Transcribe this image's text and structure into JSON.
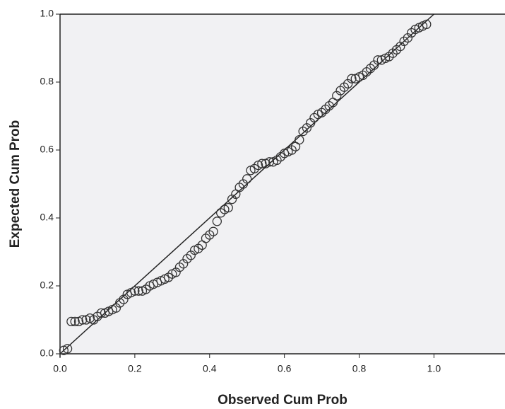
{
  "chart_data": {
    "type": "scatter",
    "x_label": "Observed Cum Prob",
    "y_label": "Expected Cum Prob",
    "xlim": [
      0,
      1.19
    ],
    "ylim": [
      0,
      1
    ],
    "xticks": [
      {
        "value": 0,
        "label": "0.0"
      },
      0.2,
      0.4,
      0.6,
      0.8,
      {
        "value": 1,
        "label": "1.0"
      }
    ],
    "yticks": [
      {
        "value": 0,
        "label": "0.0"
      },
      0.2,
      0.4,
      0.6,
      0.8,
      {
        "value": 1,
        "label": "1.0"
      }
    ],
    "color": "#333333",
    "reference_line": {
      "x": [
        0,
        1
      ],
      "y": [
        0,
        1
      ],
      "color": "#222222"
    },
    "x": [
      0.01,
      0.02,
      0.03,
      0.04,
      0.05,
      0.06,
      0.07,
      0.08,
      0.09,
      0.1,
      0.11,
      0.12,
      0.13,
      0.14,
      0.15,
      0.16,
      0.17,
      0.18,
      0.19,
      0.2,
      0.21,
      0.22,
      0.23,
      0.24,
      0.25,
      0.26,
      0.27,
      0.28,
      0.29,
      0.3,
      0.31,
      0.32,
      0.33,
      0.34,
      0.35,
      0.36,
      0.37,
      0.38,
      0.39,
      0.4,
      0.41,
      0.42,
      0.43,
      0.44,
      0.45,
      0.46,
      0.47,
      0.48,
      0.49,
      0.5,
      0.51,
      0.52,
      0.53,
      0.54,
      0.55,
      0.56,
      0.57,
      0.58,
      0.59,
      0.6,
      0.61,
      0.62,
      0.63,
      0.64,
      0.65,
      0.66,
      0.67,
      0.68,
      0.69,
      0.7,
      0.71,
      0.72,
      0.73,
      0.74,
      0.75,
      0.76,
      0.77,
      0.78,
      0.79,
      0.8,
      0.81,
      0.82,
      0.83,
      0.84,
      0.85,
      0.86,
      0.87,
      0.88,
      0.89,
      0.9,
      0.91,
      0.92,
      0.93,
      0.94,
      0.95,
      0.96,
      0.97,
      0.98
    ],
    "y": [
      0.01,
      0.015,
      0.095,
      0.095,
      0.095,
      0.1,
      0.1,
      0.105,
      0.1,
      0.11,
      0.12,
      0.12,
      0.125,
      0.13,
      0.135,
      0.15,
      0.16,
      0.175,
      0.18,
      0.185,
      0.185,
      0.185,
      0.19,
      0.2,
      0.205,
      0.21,
      0.215,
      0.22,
      0.225,
      0.235,
      0.24,
      0.255,
      0.265,
      0.28,
      0.29,
      0.305,
      0.31,
      0.32,
      0.34,
      0.35,
      0.36,
      0.39,
      0.415,
      0.425,
      0.43,
      0.455,
      0.47,
      0.49,
      0.5,
      0.515,
      0.54,
      0.545,
      0.555,
      0.56,
      0.56,
      0.565,
      0.565,
      0.57,
      0.58,
      0.59,
      0.595,
      0.6,
      0.61,
      0.63,
      0.655,
      0.665,
      0.68,
      0.695,
      0.705,
      0.71,
      0.72,
      0.73,
      0.74,
      0.76,
      0.775,
      0.785,
      0.795,
      0.81,
      0.81,
      0.815,
      0.82,
      0.83,
      0.84,
      0.85,
      0.865,
      0.865,
      0.87,
      0.875,
      0.885,
      0.895,
      0.905,
      0.92,
      0.93,
      0.945,
      0.955,
      0.96,
      0.965,
      0.97
    ]
  }
}
